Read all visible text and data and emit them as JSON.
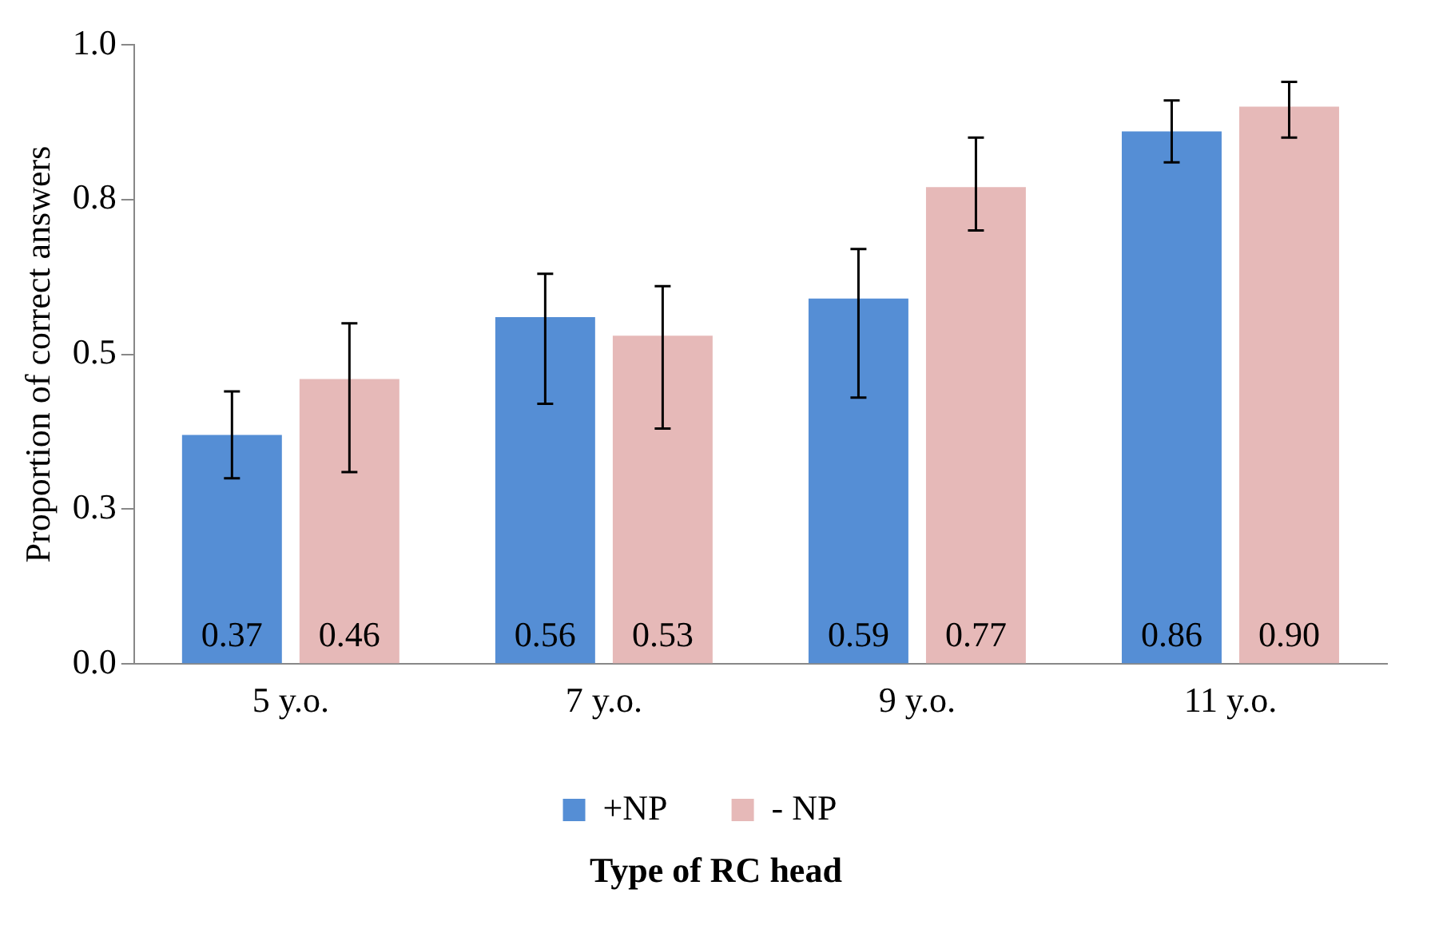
{
  "chart_data": {
    "type": "bar",
    "xlabel": "Type of RC head",
    "ylabel": "Proportion of correct answers",
    "categories": [
      "5 y.o.",
      "7 y.o.",
      "9 y.o.",
      "11 y.o."
    ],
    "series": [
      {
        "name": "+NP",
        "color": "#558ed5",
        "values": [
          0.37,
          0.56,
          0.59,
          0.86
        ],
        "errors": [
          [
            0.3,
            0.44
          ],
          [
            0.42,
            0.63
          ],
          [
            0.43,
            0.67
          ],
          [
            0.81,
            0.91
          ]
        ],
        "value_labels": [
          "0.37",
          "0.56",
          "0.59",
          "0.86"
        ]
      },
      {
        "name": "- NP",
        "color": "#e6b9b8",
        "values": [
          0.46,
          0.53,
          0.77,
          0.9
        ],
        "errors": [
          [
            0.31,
            0.55
          ],
          [
            0.38,
            0.61
          ],
          [
            0.7,
            0.85
          ],
          [
            0.85,
            0.94
          ]
        ],
        "value_labels": [
          "0.46",
          "0.53",
          "0.77",
          "0.90"
        ]
      }
    ],
    "ylim": [
      0,
      1
    ],
    "yticks": [
      {
        "value": 0,
        "label": "0.0"
      },
      {
        "value": 0.25,
        "label": "0.3"
      },
      {
        "value": 0.5,
        "label": "0.5"
      },
      {
        "value": 0.75,
        "label": "0.8"
      },
      {
        "value": 1,
        "label": "1.0"
      }
    ],
    "grid": false,
    "legend": "bottom"
  }
}
